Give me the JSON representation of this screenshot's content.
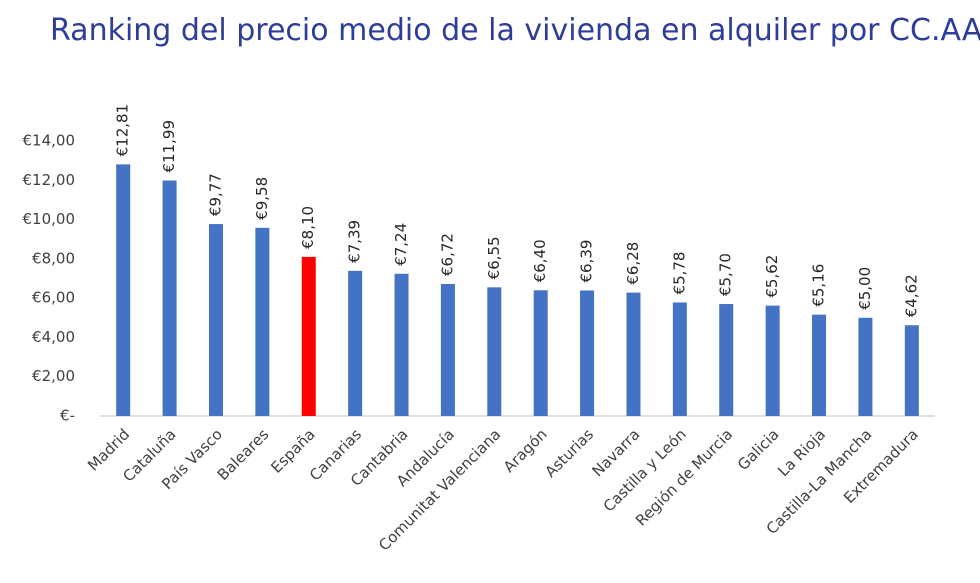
{
  "chart_data": {
    "type": "bar",
    "title": "Ranking del precio medio de la vivienda en alquiler por CC.AA.",
    "categories": [
      "Madrid",
      "Cataluña",
      "País Vasco",
      "Baleares",
      "España",
      "Canarias",
      "Cantabria",
      "Andalucía",
      "Comunitat Valenciana",
      "Aragón",
      "Asturias",
      "Navarra",
      "Castilla y León",
      "Región de Murcia",
      "Galicia",
      "La Rioja",
      "Castilla-La Mancha",
      "Extremadura"
    ],
    "values": [
      12.81,
      11.99,
      9.77,
      9.58,
      8.1,
      7.39,
      7.24,
      6.72,
      6.55,
      6.4,
      6.39,
      6.28,
      5.78,
      5.7,
      5.62,
      5.16,
      5.0,
      4.62
    ],
    "value_labels": [
      "€12,81",
      "€11,99",
      "€9,77",
      "€9,58",
      "€8,10",
      "€7,39",
      "€7,24",
      "€6,72",
      "€6,55",
      "€6,40",
      "€6,39",
      "€6,28",
      "€5,78",
      "€5,70",
      "€5,62",
      "€5,16",
      "€5,00",
      "€4,62"
    ],
    "colors": [
      "#4472c4",
      "#4472c4",
      "#4472c4",
      "#4472c4",
      "#ff0000",
      "#4472c4",
      "#4472c4",
      "#4472c4",
      "#4472c4",
      "#4472c4",
      "#4472c4",
      "#4472c4",
      "#4472c4",
      "#4472c4",
      "#4472c4",
      "#4472c4",
      "#4472c4",
      "#4472c4"
    ],
    "ylim": [
      0,
      14
    ],
    "yticks": [
      {
        "value": 0,
        "label": "€-"
      },
      {
        "value": 2,
        "label": "€2,00"
      },
      {
        "value": 4,
        "label": "€4,00"
      },
      {
        "value": 6,
        "label": "€6,00"
      },
      {
        "value": 8,
        "label": "€8,00"
      },
      {
        "value": 10,
        "label": "€10,00"
      },
      {
        "value": 12,
        "label": "€12,00"
      },
      {
        "value": 14,
        "label": "€14,00"
      }
    ],
    "grid": false
  }
}
